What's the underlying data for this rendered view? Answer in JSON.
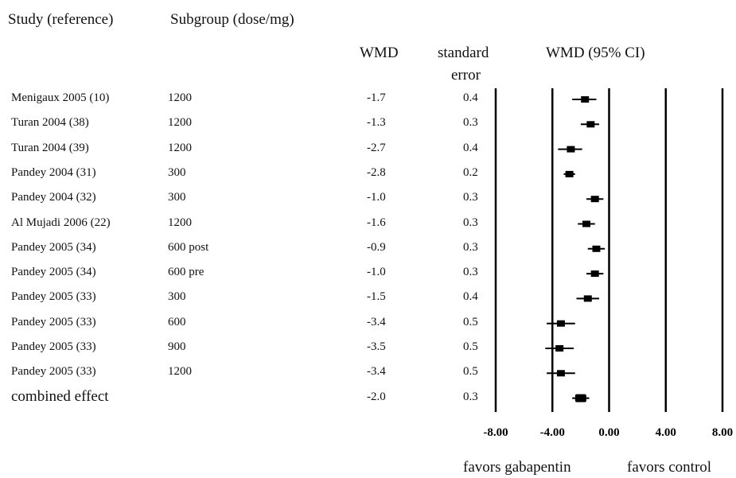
{
  "headers": {
    "study": "Study (reference)",
    "subgroup": "Subgroup (dose/mg)",
    "wmd": "WMD",
    "se_line1": "standard",
    "se_line2": "error",
    "ci": "WMD (95% CI)"
  },
  "footer": {
    "left": "favors gabapentin",
    "right": "favors control"
  },
  "chart_data": {
    "type": "forest",
    "xlim": [
      -8,
      8
    ],
    "x_ticks": [
      "-8.00",
      "-4.00",
      "0.00",
      "4.00",
      "8.00"
    ],
    "x_tick_values": [
      -8,
      -4,
      0,
      4,
      8
    ],
    "rows": [
      {
        "study": "Menigaux 2005 (10)",
        "subgroup": "1200",
        "wmd": "-1.7",
        "se": "0.4",
        "est": -1.7,
        "lo": -2.6,
        "hi": -0.9
      },
      {
        "study": "Turan 2004 (38)",
        "subgroup": "1200",
        "wmd": "-1.3",
        "se": "0.3",
        "est": -1.3,
        "lo": -2.0,
        "hi": -0.7
      },
      {
        "study": "Turan 2004 (39)",
        "subgroup": "1200",
        "wmd": "-2.7",
        "se": "0.4",
        "est": -2.7,
        "lo": -3.6,
        "hi": -1.9
      },
      {
        "study": "Pandey 2004 (31)",
        "subgroup": "300",
        "wmd": "-2.8",
        "se": "0.2",
        "est": -2.8,
        "lo": -3.2,
        "hi": -2.4
      },
      {
        "study": "Pandey 2004 (32)",
        "subgroup": "300",
        "wmd": "-1.0",
        "se": "0.3",
        "est": -1.0,
        "lo": -1.6,
        "hi": -0.4
      },
      {
        "study": "Al Mujadi 2006 (22)",
        "subgroup": "1200",
        "wmd": "-1.6",
        "se": "0.3",
        "est": -1.6,
        "lo": -2.2,
        "hi": -1.0
      },
      {
        "study": "Pandey 2005 (34)",
        "subgroup": "600 post",
        "wmd": "-0.9",
        "se": "0.3",
        "est": -0.9,
        "lo": -1.5,
        "hi": -0.3
      },
      {
        "study": "Pandey 2005 (34)",
        "subgroup": "600 pre",
        "wmd": "-1.0",
        "se": "0.3",
        "est": -1.0,
        "lo": -1.6,
        "hi": -0.4
      },
      {
        "study": "Pandey 2005 (33)",
        "subgroup": "300",
        "wmd": "-1.5",
        "se": "0.4",
        "est": -1.5,
        "lo": -2.3,
        "hi": -0.7
      },
      {
        "study": "Pandey 2005 (33)",
        "subgroup": "600",
        "wmd": "-3.4",
        "se": "0.5",
        "est": -3.4,
        "lo": -4.4,
        "hi": -2.4
      },
      {
        "study": "Pandey 2005 (33)",
        "subgroup": "900",
        "wmd": "-3.5",
        "se": "0.5",
        "est": -3.5,
        "lo": -4.5,
        "hi": -2.5
      },
      {
        "study": "Pandey 2005 (33)",
        "subgroup": "1200",
        "wmd": "-3.4",
        "se": "0.5",
        "est": -3.4,
        "lo": -4.4,
        "hi": -2.4
      },
      {
        "study": "combined effect",
        "subgroup": "",
        "wmd": "-2.0",
        "se": "0.3",
        "est": -2.0,
        "lo": -2.6,
        "hi": -1.4,
        "combined": true
      }
    ]
  }
}
